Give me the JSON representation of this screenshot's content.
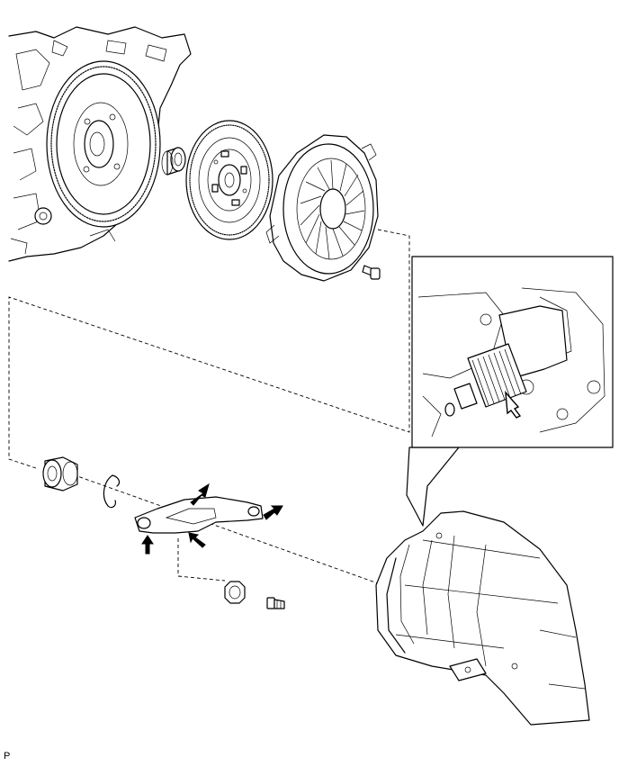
{
  "diagram": {
    "caption": "P",
    "icons": {
      "engine": "engine-block-icon",
      "flywheel": "flywheel-icon",
      "pilot_bearing": "pilot-bearing-icon",
      "clutch_disc": "clutch-disc-icon",
      "pressure_plate": "clutch-cover-icon",
      "bolt": "bolt-icon",
      "release_bearing": "release-bearing-icon",
      "clip": "clip-icon",
      "release_fork": "release-fork-icon",
      "boot": "fork-boot-icon",
      "pivot_stud": "pivot-stud-icon",
      "transmission": "transmission-housing-icon",
      "detail_view": "input-shaft-detail-icon",
      "grease_arrow": "arrow-icon"
    },
    "line_color": "#000000",
    "background": "#ffffff"
  }
}
